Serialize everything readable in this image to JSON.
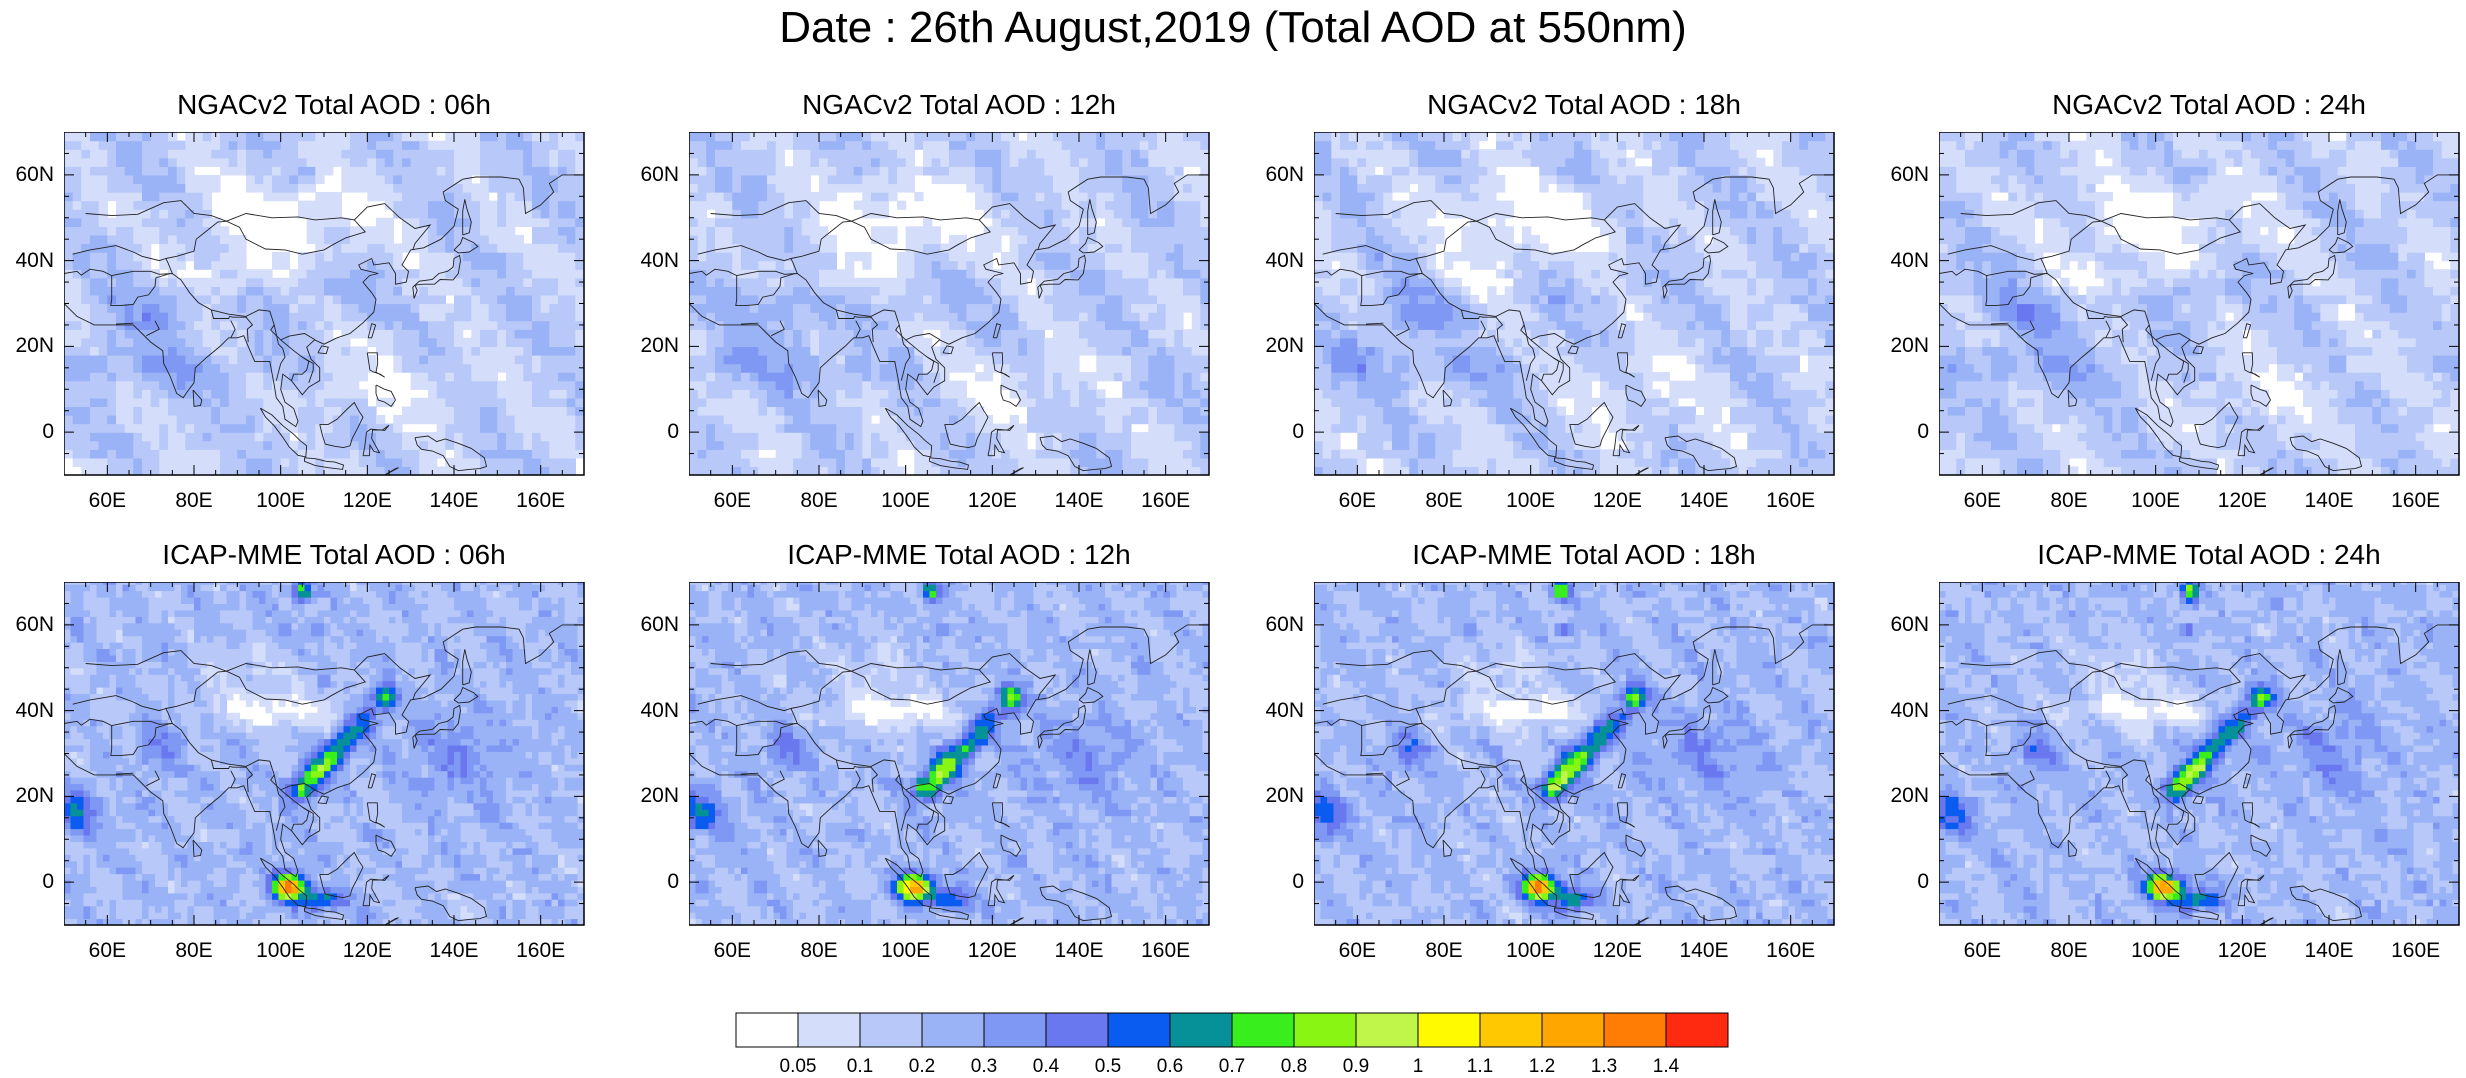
{
  "title": "Date : 26th August,2019 (Total AOD at 550nm)",
  "map": {
    "lon_range": [
      50,
      170
    ],
    "lat_range": [
      -10,
      70
    ],
    "lat_ticks": [
      {
        "value": 60,
        "label": "60N"
      },
      {
        "value": 40,
        "label": "40N"
      },
      {
        "value": 20,
        "label": "20N"
      },
      {
        "value": 0,
        "label": "0"
      }
    ],
    "lon_ticks": [
      {
        "value": 60,
        "label": "60E"
      },
      {
        "value": 80,
        "label": "80E"
      },
      {
        "value": 100,
        "label": "100E"
      },
      {
        "value": 120,
        "label": "120E"
      },
      {
        "value": 140,
        "label": "140E"
      },
      {
        "value": 160,
        "label": "160E"
      }
    ]
  },
  "panels": [
    {
      "title": "NGACv2 Total AOD : 06h",
      "model": "NGACv2",
      "hour": 6
    },
    {
      "title": "NGACv2 Total AOD : 12h",
      "model": "NGACv2",
      "hour": 12
    },
    {
      "title": "NGACv2 Total AOD : 18h",
      "model": "NGACv2",
      "hour": 18
    },
    {
      "title": "NGACv2 Total AOD : 24h",
      "model": "NGACv2",
      "hour": 24
    },
    {
      "title": "ICAP-MME Total AOD : 06h",
      "model": "ICAP-MME",
      "hour": 6
    },
    {
      "title": "ICAP-MME Total AOD : 12h",
      "model": "ICAP-MME",
      "hour": 12
    },
    {
      "title": "ICAP-MME Total AOD : 18h",
      "model": "ICAP-MME",
      "hour": 18
    },
    {
      "title": "ICAP-MME Total AOD : 24h",
      "model": "ICAP-MME",
      "hour": 24
    }
  ],
  "colorbar": {
    "levels": [
      "0.05",
      "0.1",
      "0.2",
      "0.3",
      "0.4",
      "0.5",
      "0.6",
      "0.7",
      "0.8",
      "0.9",
      "1",
      "1.1",
      "1.2",
      "1.3",
      "1.4"
    ],
    "colors": [
      "#ffffff",
      "#d4defb",
      "#b8c8f8",
      "#9ab2f6",
      "#7e98f4",
      "#6a78f0",
      "#0a5cf0",
      "#069098",
      "#39ee1d",
      "#88f513",
      "#c0f649",
      "#fffa00",
      "#ffc800",
      "#ffa600",
      "#ff7d05",
      "#ff2a10"
    ]
  }
}
